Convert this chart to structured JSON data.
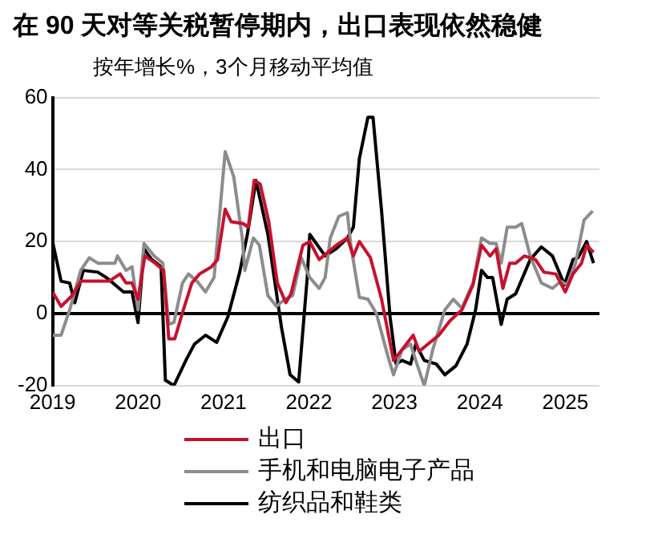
{
  "chart_data": {
    "type": "line",
    "title": "在 90 天对等关税暂停期内，出口表现依然稳健",
    "subtitle": "按年增长%，3个月移动平均值",
    "xlim": [
      2019,
      2025.4
    ],
    "xticks": [
      2019,
      2020,
      2021,
      2022,
      2023,
      2024,
      2025
    ],
    "ylim": [
      -20,
      60
    ],
    "yticks": [
      -20,
      0,
      20,
      40,
      60
    ],
    "grid": "y",
    "legend": "bottom",
    "marker": "none",
    "line_style": "solid",
    "series": [
      {
        "name": "出口",
        "color": "#c8102e",
        "x": [
          2019.0,
          2019.1,
          2019.23,
          2019.33,
          2019.66,
          2019.79,
          2019.86,
          2019.93,
          2020.0,
          2020.08,
          2020.2,
          2020.3,
          2020.36,
          2020.43,
          2020.53,
          2020.63,
          2020.72,
          2020.86,
          2020.93,
          2021.02,
          2021.09,
          2021.23,
          2021.29,
          2021.36,
          2021.43,
          2021.53,
          2021.63,
          2021.73,
          2021.79,
          2021.93,
          2022.01,
          2022.12,
          2022.32,
          2022.45,
          2022.52,
          2022.59,
          2022.72,
          2022.85,
          2022.99,
          2023.09,
          2023.22,
          2023.29,
          2023.39,
          2023.52,
          2023.65,
          2023.79,
          2023.92,
          2024.02,
          2024.12,
          2024.19,
          2024.27,
          2024.35,
          2024.42,
          2024.52,
          2024.65,
          2024.75,
          2024.89,
          2025.0,
          2025.09,
          2025.19,
          2025.25,
          2025.33
        ],
        "values": [
          6,
          2,
          5,
          9,
          9,
          11,
          8.5,
          8.5,
          4,
          16,
          14,
          12,
          -7,
          -7,
          1,
          8.5,
          11,
          13,
          15,
          29,
          25.5,
          25,
          24,
          37,
          36,
          25.5,
          8.5,
          3,
          5.5,
          19,
          20,
          15,
          19,
          21,
          16,
          20,
          15.5,
          4,
          -13,
          -10,
          -6,
          -10.5,
          -8.5,
          -6,
          -2,
          1,
          8,
          19,
          16,
          18,
          7,
          14,
          14,
          16,
          15,
          11.5,
          11,
          6,
          11,
          14,
          19,
          17
        ]
      },
      {
        "name": "手机和电脑电子产品",
        "color": "#8c8c8c",
        "x": [
          2019.0,
          2019.1,
          2019.2,
          2019.33,
          2019.43,
          2019.53,
          2019.73,
          2019.76,
          2019.86,
          2019.93,
          2020.0,
          2020.07,
          2020.19,
          2020.29,
          2020.36,
          2020.42,
          2020.52,
          2020.59,
          2020.69,
          2020.79,
          2020.89,
          2021.02,
          2021.12,
          2021.22,
          2021.25,
          2021.35,
          2021.42,
          2021.52,
          2021.62,
          2021.72,
          2021.81,
          2021.91,
          2022.01,
          2022.12,
          2022.19,
          2022.25,
          2022.35,
          2022.45,
          2022.49,
          2022.59,
          2022.69,
          2022.79,
          2022.92,
          2022.99,
          2023.09,
          2023.19,
          2023.25,
          2023.35,
          2023.45,
          2023.59,
          2023.69,
          2023.79,
          2023.92,
          2024.02,
          2024.12,
          2024.19,
          2024.25,
          2024.32,
          2024.42,
          2024.49,
          2024.59,
          2024.72,
          2024.85,
          2024.95,
          2025.02,
          2025.12,
          2025.22,
          2025.32
        ],
        "values": [
          -6,
          -6,
          1,
          12,
          15.5,
          14,
          14,
          16,
          12,
          13,
          1,
          19.5,
          16,
          14,
          -3,
          -2.5,
          8.5,
          11,
          9,
          6,
          10,
          45,
          38,
          21,
          12,
          21,
          19,
          5,
          2,
          4,
          5,
          15.5,
          10,
          7,
          10,
          21,
          27,
          28,
          19,
          4.5,
          4,
          0,
          -11.5,
          -17,
          -10,
          -8.5,
          -13,
          -20,
          -10,
          1,
          4,
          1.5,
          8.5,
          21,
          19.5,
          19.5,
          14,
          24,
          24,
          25,
          16,
          8.5,
          7,
          9,
          8,
          14,
          26,
          28.5
        ]
      },
      {
        "name": "纺织品和鞋类",
        "color": "#000000",
        "x": [
          2019.0,
          2019.1,
          2019.2,
          2019.26,
          2019.36,
          2019.53,
          2019.63,
          2019.73,
          2019.83,
          2019.93,
          2020.0,
          2020.07,
          2020.16,
          2020.27,
          2020.32,
          2020.42,
          2020.56,
          2020.66,
          2020.79,
          2020.92,
          2021.05,
          2021.19,
          2021.28,
          2021.38,
          2021.52,
          2021.68,
          2021.78,
          2021.88,
          2021.98,
          2022.01,
          2022.19,
          2022.32,
          2022.45,
          2022.52,
          2022.59,
          2022.69,
          2022.75,
          2022.85,
          2022.95,
          2023.02,
          2023.09,
          2023.19,
          2023.25,
          2023.35,
          2023.49,
          2023.59,
          2023.72,
          2023.85,
          2023.95,
          2024.02,
          2024.09,
          2024.15,
          2024.25,
          2024.32,
          2024.42,
          2024.59,
          2024.72,
          2024.85,
          2024.99,
          2025.09,
          2025.15,
          2025.25,
          2025.33
        ],
        "values": [
          20,
          9,
          8.5,
          3,
          12,
          11.5,
          10,
          8,
          6,
          6,
          -2.5,
          18,
          15,
          13,
          -18.5,
          -20,
          -13,
          -8.5,
          -6,
          -8,
          -1,
          11.5,
          22,
          37,
          22,
          -4,
          -17,
          -19,
          10,
          22,
          16,
          18,
          21,
          24,
          43,
          54.5,
          54.5,
          28.5,
          -1,
          -14,
          -13,
          -14,
          -8.5,
          -13,
          -14,
          -17,
          -14.5,
          -8.5,
          1,
          12,
          10,
          10,
          -3,
          4,
          5.5,
          15,
          18.5,
          16,
          8,
          15,
          15.5,
          20,
          14
        ]
      }
    ]
  }
}
